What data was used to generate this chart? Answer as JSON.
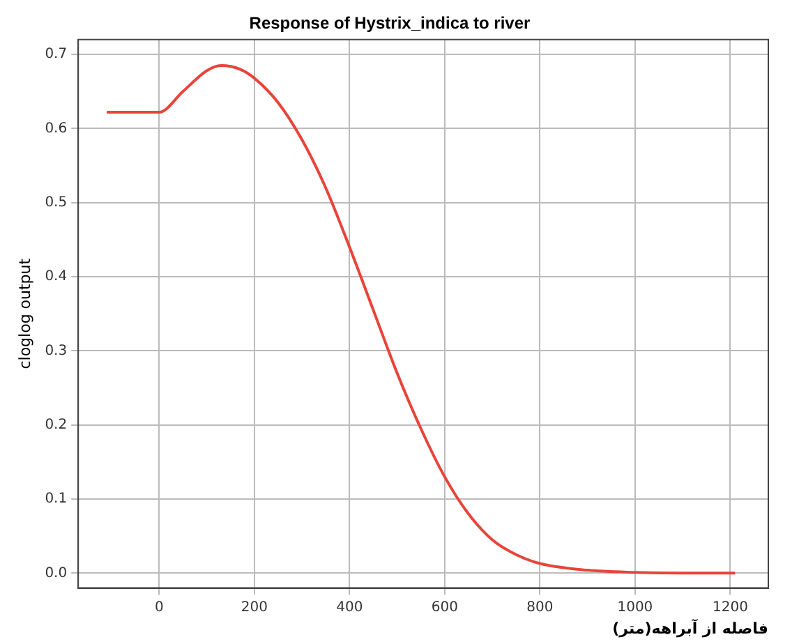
{
  "chart_data": {
    "type": "line",
    "title": "Response of Hystrix_indica to river",
    "xlabel": "فاصله از آبراهه(متر)",
    "ylabel": "cloglog output",
    "x": [
      -110,
      0,
      50,
      100,
      130,
      170,
      200,
      250,
      300,
      350,
      400,
      450,
      500,
      550,
      600,
      650,
      700,
      750,
      800,
      900,
      1000,
      1100,
      1210
    ],
    "series": [
      {
        "color": "#e8443a",
        "values": [
          0.622,
          0.622,
          0.65,
          0.678,
          0.685,
          0.68,
          0.668,
          0.635,
          0.585,
          0.52,
          0.44,
          0.355,
          0.27,
          0.195,
          0.13,
          0.08,
          0.045,
          0.025,
          0.013,
          0.004,
          0.001,
          0,
          0
        ]
      }
    ],
    "xlim": [
      -170,
      1280
    ],
    "xticks": [
      0,
      200,
      400,
      600,
      800,
      1000,
      1200
    ],
    "ylim": [
      -0.02,
      0.72
    ],
    "yticks": [
      {
        "value": 0,
        "label": "0.0"
      },
      0.1,
      0.2,
      0.3,
      0.4,
      0.5,
      0.6,
      0.7
    ],
    "grid": true,
    "legend": false,
    "marker": "none",
    "line_style": "solid"
  }
}
